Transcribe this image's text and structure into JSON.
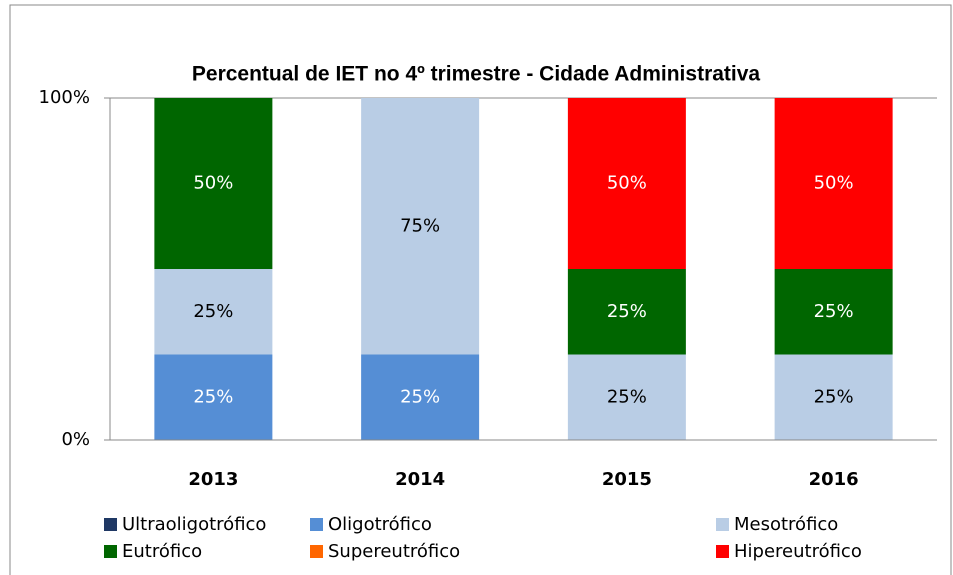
{
  "chart_data": {
    "type": "stacked_bar",
    "title": "Percentual de  IET no 4º trimestre  - Cidade Administrativa",
    "categories": [
      "2013",
      "2014",
      "2015",
      "2016"
    ],
    "series": [
      {
        "name": "Ultraoligotrófico",
        "color": "#1f3864",
        "values": [
          0,
          0,
          0,
          0
        ],
        "value_labels": [
          null,
          null,
          null,
          null
        ]
      },
      {
        "name": "Oligotrófico",
        "color": "#558ed5",
        "values": [
          25,
          25,
          0,
          0
        ],
        "value_labels": [
          "25%",
          "25%",
          null,
          null
        ]
      },
      {
        "name": "Mesotrófico",
        "color": "#b9cde5",
        "values": [
          25,
          75,
          25,
          25
        ],
        "value_labels": [
          "25%",
          "75%",
          "25%",
          "25%"
        ]
      },
      {
        "name": "Eutrófico",
        "color": "#006600",
        "values": [
          50,
          0,
          25,
          25
        ],
        "value_labels": [
          "50%",
          null,
          "25%",
          "25%"
        ]
      },
      {
        "name": "Supereutrófico",
        "color": "#ff6600",
        "values": [
          0,
          0,
          0,
          0
        ],
        "value_labels": [
          null,
          null,
          null,
          null
        ]
      },
      {
        "name": "Hipereutrófico",
        "color": "#ff0000",
        "values": [
          0,
          0,
          50,
          50
        ],
        "value_labels": [
          null,
          null,
          "50%",
          "50%"
        ]
      }
    ],
    "ylim": [
      0,
      100
    ],
    "yticks": [
      {
        "value": 0,
        "label": "0%"
      },
      {
        "value": 100,
        "label": "100%"
      }
    ],
    "grid": true,
    "legend": "bottom"
  }
}
